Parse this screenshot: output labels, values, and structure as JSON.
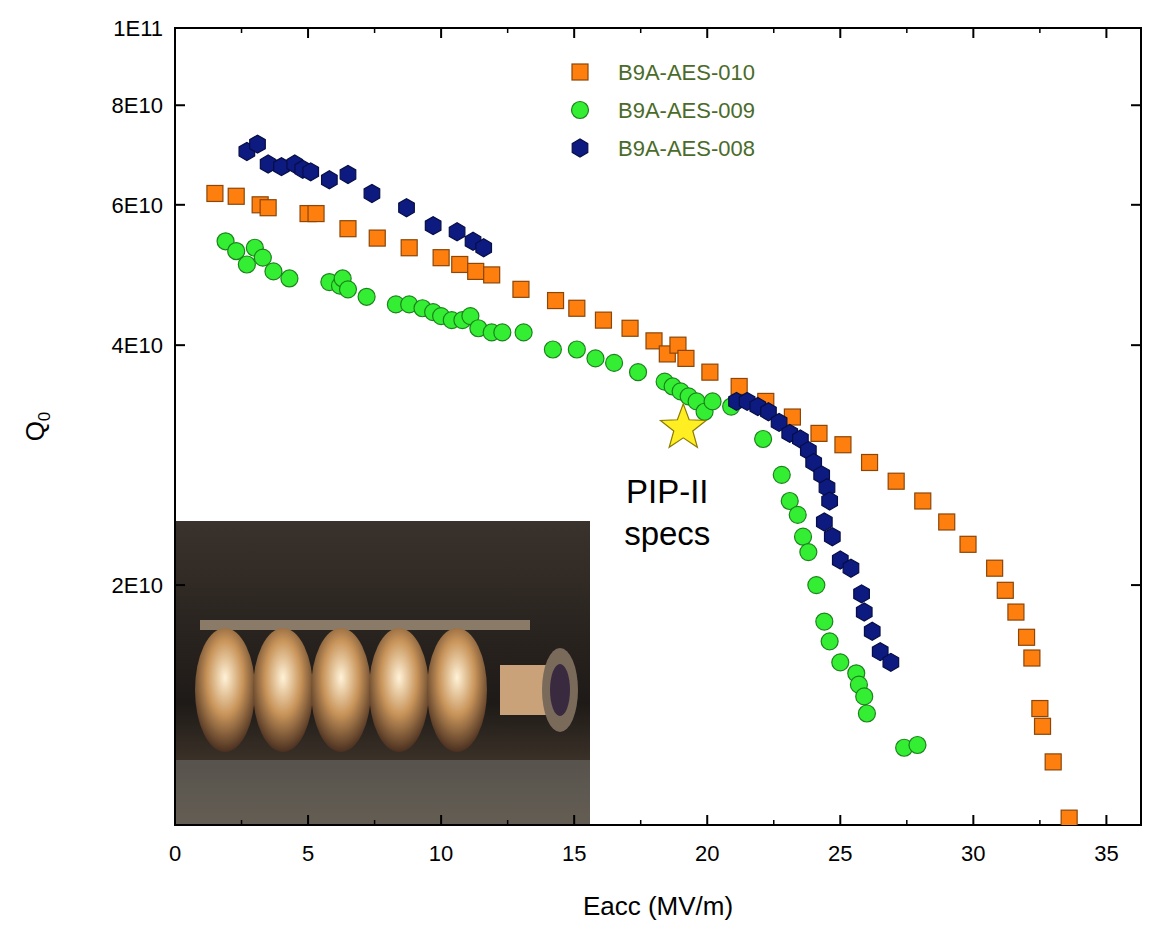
{
  "chart_data": {
    "type": "scatter",
    "x_label": "Eacc (MV/m)",
    "y_label": "Q0",
    "log": "y",
    "legend": "top",
    "xlim": [
      0,
      36.3
    ],
    "xticks": [
      0,
      5,
      10,
      15,
      20,
      25,
      30,
      35
    ],
    "ylim": [
      10000000000.0,
      100000000000.0
    ],
    "yticks": [
      {
        "value": 20000000000.0,
        "label": "2E10"
      },
      {
        "value": 40000000000.0,
        "label": "4E10"
      },
      {
        "value": 60000000000.0,
        "label": "6E10"
      },
      {
        "value": 80000000000.0,
        "label": "8E10"
      },
      {
        "value": 100000000000.0,
        "label": "1E11"
      }
    ],
    "series": [
      {
        "name": "B9A-AES-010",
        "color": "#ff7f0e",
        "marker": "square",
        "x": [
          1.5,
          2.3,
          3.2,
          3.5,
          5.0,
          5.3,
          6.5,
          7.6,
          8.8,
          10.0,
          10.7,
          11.3,
          11.9,
          13.0,
          14.3,
          15.1,
          16.1,
          17.1,
          18.0,
          18.5,
          18.9,
          19.2,
          20.1,
          21.2,
          22.2,
          23.2,
          24.2,
          25.1,
          26.1,
          27.1,
          28.1,
          29.0,
          29.8,
          30.8,
          31.2,
          31.6,
          32.0,
          32.2,
          32.5,
          32.6,
          33.0,
          33.6
        ],
        "values": [
          62000000000.0,
          61500000000.0,
          60000000000.0,
          59500000000.0,
          58500000000.0,
          58500000000.0,
          56000000000.0,
          54500000000.0,
          53000000000.0,
          51500000000.0,
          50500000000.0,
          49500000000.0,
          49000000000.0,
          47000000000.0,
          45500000000.0,
          44500000000.0,
          43000000000.0,
          42000000000.0,
          40500000000.0,
          39000000000.0,
          40000000000.0,
          38500000000.0,
          37000000000.0,
          35500000000.0,
          34000000000.0,
          32500000000.0,
          31000000000.0,
          30000000000.0,
          28500000000.0,
          27000000000.0,
          25500000000.0,
          24000000000.0,
          22500000000.0,
          21000000000.0,
          19700000000.0,
          18500000000.0,
          17200000000.0,
          16200000000.0,
          14000000000.0,
          13300000000.0,
          12000000000.0,
          10200000000.0
        ]
      },
      {
        "name": "B9A-AES-009",
        "color": "#33ee33",
        "marker": "circle",
        "x": [
          1.9,
          2.3,
          2.7,
          3.0,
          3.3,
          3.7,
          4.3,
          5.8,
          6.2,
          6.3,
          6.5,
          7.2,
          8.3,
          8.8,
          9.3,
          9.7,
          10.0,
          10.4,
          10.8,
          11.1,
          11.4,
          11.9,
          12.3,
          13.1,
          14.2,
          15.1,
          15.8,
          16.5,
          17.4,
          18.4,
          18.7,
          19.0,
          19.3,
          19.6,
          19.9,
          20.2,
          20.9,
          22.1,
          22.8,
          23.1,
          23.4,
          23.6,
          23.8,
          24.1,
          24.4,
          24.6,
          25.0,
          25.6,
          25.7,
          25.9,
          26.0,
          27.4,
          27.9
        ],
        "values": [
          54000000000.0,
          52500000000.0,
          50500000000.0,
          53000000000.0,
          51500000000.0,
          49500000000.0,
          48500000000.0,
          48000000000.0,
          47500000000.0,
          48500000000.0,
          47000000000.0,
          46000000000.0,
          45000000000.0,
          45000000000.0,
          44500000000.0,
          44000000000.0,
          43500000000.0,
          43000000000.0,
          43000000000.0,
          43500000000.0,
          42000000000.0,
          41500000000.0,
          41500000000.0,
          41500000000.0,
          39500000000.0,
          39500000000.0,
          38500000000.0,
          38000000000.0,
          37000000000.0,
          36000000000.0,
          35500000000.0,
          35000000000.0,
          34500000000.0,
          34000000000.0,
          33000000000.0,
          34000000000.0,
          33500000000.0,
          30500000000.0,
          27500000000.0,
          25500000000.0,
          24500000000.0,
          23000000000.0,
          22000000000.0,
          20000000000.0,
          18000000000.0,
          17000000000.0,
          16000000000.0,
          15500000000.0,
          15000000000.0,
          14500000000.0,
          13800000000.0,
          12500000000.0,
          12600000000.0
        ]
      },
      {
        "name": "B9A-AES-008",
        "color": "#0d1a80",
        "marker": "hexagon",
        "x": [
          2.7,
          3.1,
          3.5,
          4.0,
          4.5,
          4.8,
          5.1,
          5.8,
          6.5,
          7.4,
          8.7,
          9.7,
          10.6,
          11.2,
          11.6,
          21.1,
          21.5,
          21.9,
          22.3,
          22.7,
          23.1,
          23.5,
          23.8,
          24.0,
          24.3,
          24.5,
          24.6,
          24.4,
          24.7,
          25.0,
          25.4,
          25.8,
          25.9,
          26.2,
          26.5,
          26.9
        ],
        "values": [
          70000000000.0,
          71500000000.0,
          67500000000.0,
          67000000000.0,
          67500000000.0,
          66500000000.0,
          66000000000.0,
          64500000000.0,
          65500000000.0,
          62000000000.0,
          59500000000.0,
          56500000000.0,
          55500000000.0,
          54000000000.0,
          53000000000.0,
          34000000000.0,
          34000000000.0,
          33500000000.0,
          33000000000.0,
          32000000000.0,
          31000000000.0,
          30500000000.0,
          29500000000.0,
          28500000000.0,
          27500000000.0,
          26500000000.0,
          25500000000.0,
          24000000000.0,
          23000000000.0,
          21500000000.0,
          21000000000.0,
          19500000000.0,
          18500000000.0,
          17500000000.0,
          16500000000.0,
          16000000000.0
        ]
      }
    ],
    "annotations": [
      {
        "text": "PIP-II specs",
        "x": 19.1,
        "y": 31500000000.0,
        "color": "#ffee22",
        "marker": "star"
      }
    ]
  }
}
